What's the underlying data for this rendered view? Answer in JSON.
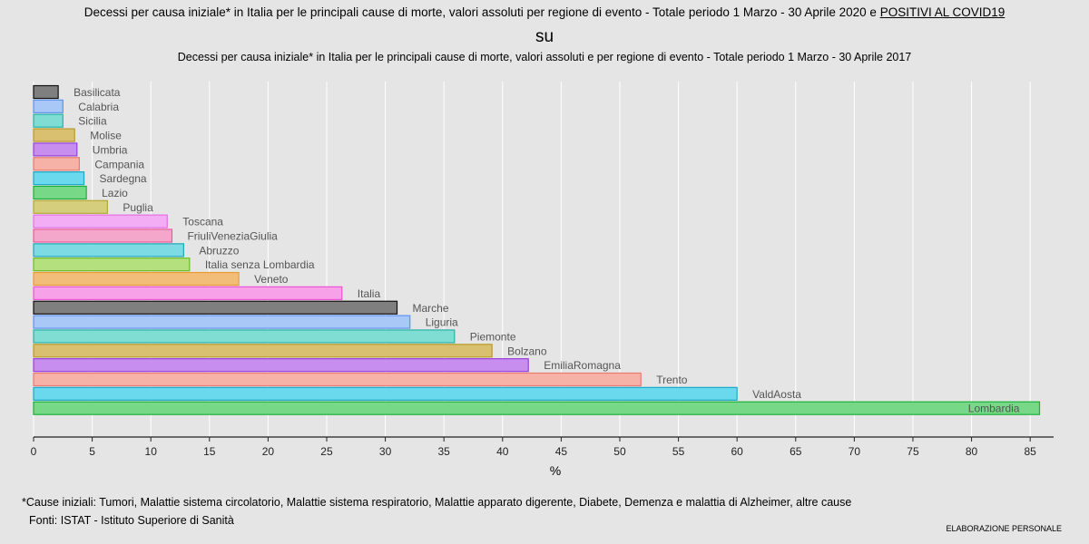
{
  "header": {
    "title_main": "Decessi per causa iniziale* in Italia per le principali cause di morte, valori assoluti per regione di evento - Totale periodo 1 Marzo - 30 Aprile 2020 e ",
    "title_highlight": "POSITIVI AL COVID19",
    "title_connector": "su",
    "title_sub": "Decessi per causa iniziale* in Italia per le principali cause di morte, valori assoluti e per regione di evento - Totale periodo 1 Marzo - 30 Aprile 2017"
  },
  "footer": {
    "note": "*Cause iniziali: Tumori, Malattie sistema circolatorio, Malattie sistema respiratorio, Malattie apparato digerente, Diabete, Demenza e malattia di Alzheimer, altre cause",
    "source": "Fonti: ISTAT - Istituto Superiore di Sanità",
    "credit": "ELABORAZIONE PERSONALE"
  },
  "chart_data": {
    "type": "bar",
    "orientation": "horizontal",
    "xlabel": "%",
    "xlim": [
      0,
      87
    ],
    "xticks": [
      0,
      5,
      10,
      15,
      20,
      25,
      30,
      35,
      40,
      45,
      50,
      55,
      60,
      65,
      70,
      75,
      80,
      85
    ],
    "grid": true,
    "legend": "none",
    "categories": [
      "Basilicata",
      "Calabria",
      "Sicilia",
      "Molise",
      "Umbria",
      "Campania",
      "Sardegna",
      "Lazio",
      "Puglia",
      "Toscana",
      "FriuliVeneziaGiulia",
      "Abruzzo",
      "Italia senza Lombardia",
      "Veneto",
      "Italia",
      "Marche",
      "Liguria",
      "Piemonte",
      "Bolzano",
      "EmiliaRomagna",
      "Trento",
      "ValdAosta",
      "Lombardia"
    ],
    "values": [
      2.1,
      2.5,
      2.5,
      3.5,
      3.7,
      3.9,
      4.3,
      4.5,
      6.3,
      11.4,
      11.8,
      12.8,
      13.3,
      17.5,
      26.3,
      31.0,
      32.1,
      35.9,
      39.1,
      42.2,
      51.8,
      60.0,
      85.8
    ],
    "colors": [
      "#7f7f7f",
      "#a9c7f7",
      "#80ddd3",
      "#d9c070",
      "#c78ef0",
      "#f7b2a8",
      "#6ad8ed",
      "#77d888",
      "#d5cf7d",
      "#f3adf4",
      "#f5a7cb",
      "#7cdbe3",
      "#b5e07e",
      "#f2bd78",
      "#f7a2e8",
      "#7f7f7f",
      "#a9c7f7",
      "#80ddd3",
      "#d9c070",
      "#c78ef0",
      "#f7b2a8",
      "#6ad8ed",
      "#77d888"
    ],
    "border_colors": [
      "#111111",
      "#5e94ef",
      "#27b3a7",
      "#b99a2c",
      "#9a40d8",
      "#ea7a72",
      "#1ca9c9",
      "#1cb03b",
      "#b4a934",
      "#e46fe5",
      "#ec5a9c",
      "#21a8b7",
      "#6dbb26",
      "#ec9a34",
      "#ee53d5",
      "#111111",
      "#5e94ef",
      "#27b3a7",
      "#b99a2c",
      "#9a40d8",
      "#ea7a72",
      "#1ca9c9",
      "#1cb03b"
    ]
  }
}
